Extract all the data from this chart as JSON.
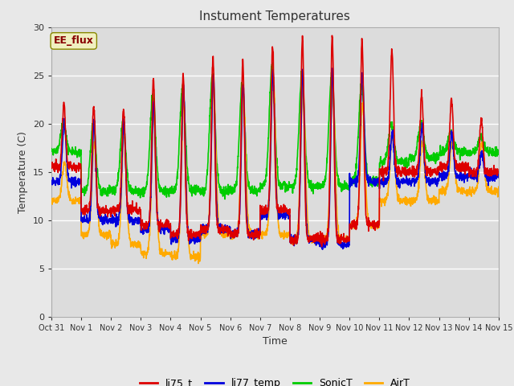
{
  "title": "Instument Temperatures",
  "xlabel": "Time",
  "ylabel": "Temperature (C)",
  "ylim": [
    0,
    30
  ],
  "annotation": "EE_flux",
  "fig_facecolor": "#e8e8e8",
  "plot_facecolor": "#dcdcdc",
  "lines": {
    "li75_t": {
      "color": "#dd0000",
      "lw": 1.2
    },
    "li77_temp": {
      "color": "#0000dd",
      "lw": 1.2
    },
    "SonicT": {
      "color": "#00cc00",
      "lw": 1.2
    },
    "AirT": {
      "color": "#ffaa00",
      "lw": 1.2
    }
  },
  "xtick_labels": [
    "Oct 31",
    "Nov 1",
    "Nov 2",
    "Nov 3",
    "Nov 4",
    "Nov 5",
    "Nov 6",
    "Nov 7",
    "Nov 8",
    "Nov 9",
    "Nov 10",
    "Nov 11",
    "Nov 12",
    "Nov 13",
    "Nov 14",
    "Nov 15"
  ],
  "ytick_vals": [
    0,
    5,
    10,
    15,
    20,
    25,
    30
  ],
  "legend_labels": [
    "li75_t",
    "li77_temp",
    "SonicT",
    "AirT"
  ],
  "legend_colors": [
    "#dd0000",
    "#0000dd",
    "#00cc00",
    "#ffaa00"
  ]
}
